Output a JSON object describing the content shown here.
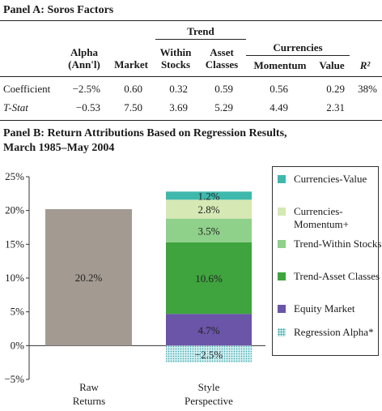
{
  "panel_a": {
    "title": "Panel A: Soros Factors",
    "group_trend": "Trend",
    "group_currencies": "Currencies",
    "headers": {
      "alpha": "Alpha (Ann'l)",
      "market": "Market",
      "within": "Within Stocks",
      "asset": "Asset Classes",
      "momentum": "Momentum",
      "value": "Value",
      "r2": "R²"
    },
    "rows": [
      {
        "label": "Coefficient",
        "alpha": "−2.5%",
        "market": "0.60",
        "within": "0.32",
        "asset": "0.59",
        "momentum": "0.56",
        "value": "0.29",
        "r2": "38%"
      },
      {
        "label": "T-Stat",
        "alpha": "−0.53",
        "market": "7.50",
        "within": "3.69",
        "asset": "5.29",
        "momentum": "4.49",
        "value": "2.31",
        "r2": ""
      }
    ]
  },
  "panel_b": {
    "title_line1": "Panel B: Return Attributions Based on Regression Results,",
    "title_line2": "March 1985–May 2004"
  },
  "chart_data": {
    "type": "bar",
    "categories": [
      "Raw Returns",
      "Style Perspective"
    ],
    "ylim": [
      -5,
      25
    ],
    "yticks": [
      -5,
      0,
      5,
      10,
      15,
      20,
      25
    ],
    "ytick_labels": [
      "−5%",
      "0%",
      "5%",
      "10%",
      "15%",
      "20%",
      "25%"
    ],
    "grid": false,
    "legend_position": "right",
    "raw_returns": {
      "value": 20.2,
      "label": "20.2%",
      "color": "#a39a92"
    },
    "series": [
      {
        "name": "Currencies-Value",
        "value": 1.2,
        "label": "1.2%",
        "color": "#3fb8ac"
      },
      {
        "name": "Currencies-Momentum+",
        "value": 2.8,
        "label": "2.8%",
        "color": "#d6e8b4"
      },
      {
        "name": "Trend-Within Stocks",
        "value": 3.5,
        "label": "3.5%",
        "color": "#8fd08a"
      },
      {
        "name": "Trend-Asset Classes",
        "value": 10.6,
        "label": "10.6%",
        "color": "#3fa43e"
      },
      {
        "name": "Equity Market",
        "value": 4.7,
        "label": "4.7%",
        "color": "#6a55a8"
      },
      {
        "name": "Regression Alpha*",
        "value": -2.5,
        "label": "−2.5%",
        "color": "#cfeef0"
      }
    ],
    "xlabels": [
      {
        "line1": "Raw",
        "line2": "Returns"
      },
      {
        "line1": "Style",
        "line2": "Perspective"
      }
    ]
  }
}
